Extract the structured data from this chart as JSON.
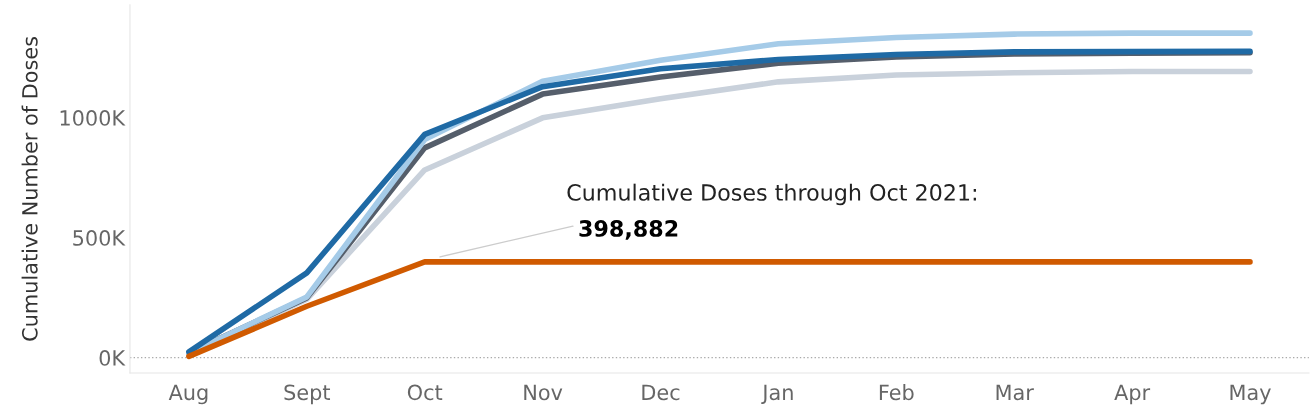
{
  "chart_data": {
    "type": "line",
    "ylabel": "Cumulative Number of Doses",
    "categories": [
      "Aug",
      "Sept",
      "Oct",
      "Nov",
      "Dec",
      "Jan",
      "Feb",
      "Mar",
      "Apr",
      "May"
    ],
    "series": [
      {
        "color": "#c9d1db",
        "values": [
          15000,
          243000,
          782000,
          999000,
          1079000,
          1149000,
          1178000,
          1187000,
          1192000,
          1192000
        ]
      },
      {
        "color": "#555e6b",
        "values": [
          20000,
          249000,
          874000,
          1098000,
          1169000,
          1227000,
          1253000,
          1265000,
          1268000,
          1270000
        ]
      },
      {
        "color": "#a5cbe8",
        "values": [
          18000,
          253000,
          909000,
          1152000,
          1239000,
          1308000,
          1334000,
          1348000,
          1352000,
          1352000
        ]
      },
      {
        "color": "#1f6aa5",
        "values": [
          24000,
          353000,
          930000,
          1129000,
          1204000,
          1242000,
          1263000,
          1274000,
          1275000,
          1276000
        ]
      },
      {
        "color": "#d05a00",
        "values": [
          5000,
          214000,
          398882,
          398882,
          398882,
          398882,
          398882,
          398882,
          398882,
          398882
        ]
      }
    ],
    "ylim": [
      -64000,
      1470000
    ],
    "yticks": [
      {
        "value": 0,
        "label": "0K"
      },
      {
        "value": 500000,
        "label": "500K"
      },
      {
        "value": 1000000,
        "label": "1000K"
      }
    ],
    "ref_lines": [
      {
        "axis": "y",
        "value": 0,
        "color": "#aaaaaa",
        "line_style": "dotted"
      }
    ],
    "annotations": [
      "Cumulative Doses through Oct 2021:",
      "398,882"
    ],
    "grid": false,
    "legend": false,
    "marker": "none",
    "line_style": "solid"
  }
}
